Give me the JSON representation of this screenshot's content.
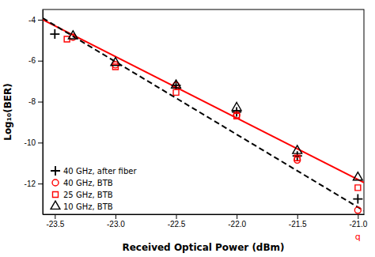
{
  "chart_data": {
    "type": "scatter",
    "xlabel": "Received Optical Power (dBm)",
    "ylabel": "Log₁₀(BER)",
    "xlim": [
      -23.6,
      -20.95
    ],
    "ylim": [
      -13.5,
      -3.5
    ],
    "xticks": [
      -23.5,
      {
        "value": -23,
        "label": "-23.0"
      },
      -22.5,
      {
        "value": -22,
        "label": "-22.0"
      },
      -21.5,
      {
        "value": -21,
        "label": "-21.0"
      }
    ],
    "yticks": [
      -4,
      -6,
      -8,
      -10,
      -12
    ],
    "legend": "lower left",
    "series": [
      {
        "type": "line",
        "color": "red",
        "line_style": "solid",
        "x": [
          -23.6,
          -20.95
        ],
        "values": [
          -4.0,
          -11.95
        ]
      },
      {
        "type": "line",
        "color": "black",
        "line_style": "dashed",
        "x": [
          -23.6,
          -20.95
        ],
        "values": [
          -3.92,
          -13.3275
        ]
      },
      {
        "type": "scatter",
        "name": "40 GHz, after fiber",
        "color": "black",
        "marker": "plus",
        "x": [
          -23.5,
          -22.5,
          -22.0,
          -21.5,
          -21.0
        ],
        "values": [
          -4.7,
          -7.2,
          -8.5,
          -10.65,
          -12.75
        ]
      },
      {
        "type": "scatter",
        "name": "40 GHz, BTB",
        "color": "red",
        "marker": "circle",
        "x": [
          -23.35,
          -23.0,
          -22.5,
          -22.0,
          -21.5,
          -21.0
        ],
        "values": [
          -4.85,
          -6.2,
          -7.2,
          -8.65,
          -10.85,
          -13.3
        ]
      },
      {
        "type": "scatter",
        "name": "25 GHz, BTB",
        "color": "red",
        "marker": "square",
        "x": [
          -23.4,
          -23.0,
          -22.5,
          -22.0,
          -21.5,
          -21.0
        ],
        "values": [
          -4.95,
          -6.3,
          -7.55,
          -8.7,
          -10.75,
          -12.2
        ]
      },
      {
        "type": "scatter",
        "name": "10 GHz, BTB",
        "color": "black",
        "marker": "triangle",
        "x": [
          -23.35,
          -23.0,
          -22.5,
          -22.0,
          -21.5,
          -21.0
        ],
        "values": [
          -4.8,
          -6.1,
          -7.2,
          -8.3,
          -10.4,
          -11.7
        ]
      }
    ],
    "annotations": [
      {
        "text": "q",
        "x": -21.0,
        "y": -13.5,
        "color": "red"
      }
    ]
  }
}
